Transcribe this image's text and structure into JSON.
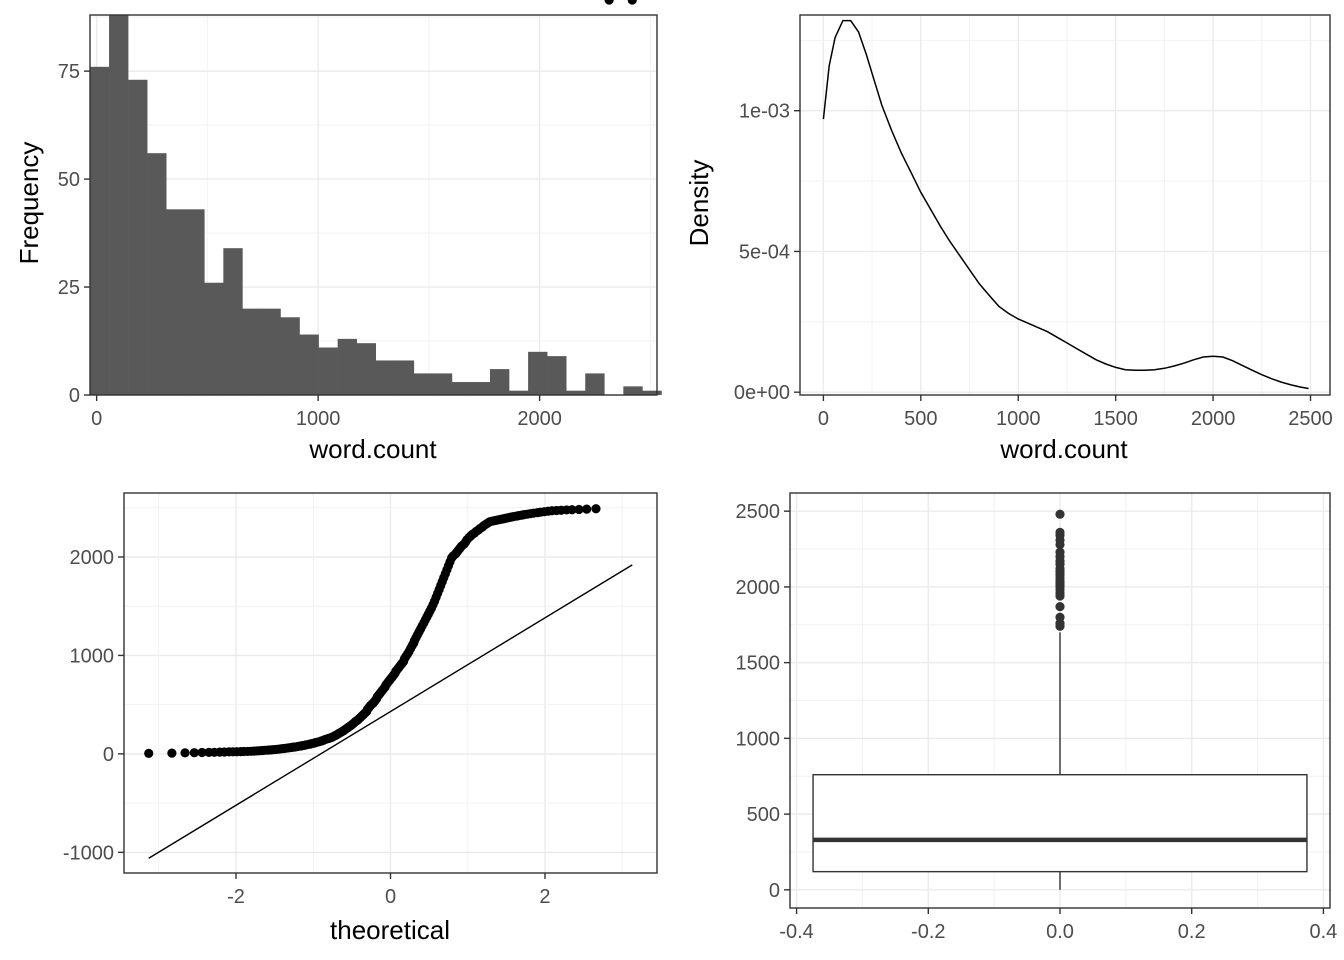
{
  "chart_data": [
    {
      "type": "bar",
      "subtype": "histogram",
      "xlabel": "word.count",
      "ylabel": "Frequency",
      "xlim": [
        -30,
        2530
      ],
      "ylim": [
        0,
        88
      ],
      "xticks": [
        0,
        1000,
        2000
      ],
      "yticks": [
        0,
        25,
        50,
        75
      ],
      "grid": true,
      "bar_color": "#595959",
      "bins": {
        "start": -30,
        "width": 86,
        "values": [
          76,
          88,
          73,
          56,
          43,
          43,
          26,
          34,
          20,
          20,
          18,
          14,
          11,
          13,
          12,
          8,
          8,
          5,
          5,
          3,
          3,
          6,
          1,
          10,
          9,
          1,
          5,
          0,
          2,
          1
        ]
      }
    },
    {
      "type": "line",
      "subtype": "density",
      "xlabel": "word.count",
      "ylabel": "Density",
      "xlim": [
        -120,
        2600
      ],
      "ylim": [
        -1e-05,
        0.00134
      ],
      "xticks": [
        0,
        500,
        1000,
        1500,
        2000,
        2500
      ],
      "yticks": [
        0,
        0.0005,
        0.001
      ],
      "ytick_labels": [
        "0e+00",
        "5e-04",
        "1e-03"
      ],
      "grid": true,
      "series": [
        {
          "x": [
            0,
            30,
            60,
            100,
            140,
            180,
            220,
            260,
            300,
            350,
            400,
            450,
            500,
            550,
            600,
            650,
            700,
            750,
            800,
            850,
            900,
            950,
            1000,
            1050,
            1100,
            1150,
            1200,
            1250,
            1300,
            1350,
            1400,
            1450,
            1500,
            1550,
            1600,
            1650,
            1700,
            1750,
            1800,
            1850,
            1900,
            1950,
            2000,
            2050,
            2100,
            2150,
            2200,
            2250,
            2300,
            2350,
            2400,
            2450,
            2490
          ],
          "y": [
            0.00097,
            0.00116,
            0.00126,
            0.00132,
            0.00132,
            0.00128,
            0.0012,
            0.00111,
            0.00102,
            0.00093,
            0.00085,
            0.00078,
            0.00071,
            0.00065,
            0.00059,
            0.000535,
            0.000485,
            0.000435,
            0.000385,
            0.000345,
            0.000305,
            0.00028,
            0.00026,
            0.000245,
            0.00023,
            0.000215,
            0.000195,
            0.000175,
            0.000155,
            0.000135,
            0.000115,
            0.0001,
            8.8e-05,
            8e-05,
            7.8e-05,
            7.8e-05,
            8e-05,
            8.5e-05,
            9.3e-05,
            0.000103,
            0.000115,
            0.000125,
            0.000128,
            0.000125,
            0.000112,
            9.5e-05,
            7.8e-05,
            6.2e-05,
            4.8e-05,
            3.6e-05,
            2.6e-05,
            1.8e-05,
            1.3e-05
          ]
        }
      ]
    },
    {
      "type": "scatter",
      "subtype": "qq-plot",
      "xlabel": "theoretical",
      "ylabel": "",
      "xlim": [
        -3.45,
        3.45
      ],
      "ylim": [
        -1210,
        2650
      ],
      "xticks": [
        -2,
        0,
        2
      ],
      "yticks": [
        -1000,
        0,
        1000,
        2000
      ],
      "grid": true,
      "reference_line": {
        "x": [
          -3.13,
          3.13
        ],
        "y": [
          -1060,
          1920
        ]
      },
      "theoretical_quantiles": [
        -3.13,
        -2.83,
        -2.66,
        -2.54,
        -2.44,
        -2.35,
        -2.28,
        -2.21,
        -2.15,
        -2.09,
        -2.04,
        -1.99,
        -1.94,
        -1.9,
        -1.85,
        -1.81,
        -1.77,
        -1.73,
        -1.7,
        -1.66,
        -1.63,
        -1.59,
        -1.56,
        -1.53,
        -1.5,
        -1.47,
        -1.44,
        -1.41,
        -1.38,
        -1.35,
        -1.32,
        -1.29,
        -1.27,
        -1.24,
        -1.21,
        -1.19,
        -1.16,
        -1.14,
        -1.11,
        -1.09,
        -1.06,
        -1.04,
        -1.02,
        -0.99,
        -0.97,
        -0.95,
        -0.92,
        -0.9,
        -0.88,
        -0.86,
        -0.84,
        -0.81,
        -0.79,
        -0.77,
        -0.75,
        -0.73,
        -0.71,
        -0.69,
        -0.67,
        -0.65,
        -0.63,
        -0.61,
        -0.59,
        -0.57,
        -0.55,
        -0.53,
        -0.51,
        -0.49,
        -0.47,
        -0.45,
        -0.43,
        -0.41,
        -0.39,
        -0.37,
        -0.35,
        -0.33,
        -0.31,
        -0.3,
        -0.28,
        -0.26,
        -0.24,
        -0.22,
        -0.2,
        -0.18,
        -0.17,
        -0.15,
        -0.13,
        -0.11,
        -0.09,
        -0.07,
        -0.06,
        -0.04,
        -0.02,
        0.0,
        0.02,
        0.04,
        0.06,
        0.07,
        0.09,
        0.11,
        0.13,
        0.15,
        0.17,
        0.18,
        0.2,
        0.22,
        0.24,
        0.26,
        0.28,
        0.3,
        0.31,
        0.33,
        0.35,
        0.37,
        0.39,
        0.41,
        0.43,
        0.45,
        0.47,
        0.49,
        0.51,
        0.53,
        0.55,
        0.57,
        0.59,
        0.61,
        0.63,
        0.65,
        0.67,
        0.69,
        0.71,
        0.73,
        0.75,
        0.77,
        0.79,
        0.81,
        0.84,
        0.86,
        0.88,
        0.9,
        0.92,
        0.95,
        0.97,
        0.99,
        1.02,
        1.04,
        1.06,
        1.09,
        1.11,
        1.14,
        1.16,
        1.19,
        1.21,
        1.24,
        1.27,
        1.29,
        1.32,
        1.35,
        1.38,
        1.41,
        1.44,
        1.47,
        1.5,
        1.53,
        1.56,
        1.59,
        1.63,
        1.66,
        1.7,
        1.73,
        1.77,
        1.81,
        1.85,
        1.9,
        1.94,
        1.99,
        2.04,
        2.09,
        2.15,
        2.21,
        2.28,
        2.35,
        2.44,
        2.54,
        2.66,
        2.83,
        3.13
      ],
      "sample_quantiles": [
        5,
        8,
        10,
        12,
        14,
        15,
        16,
        18,
        19,
        20,
        21,
        22,
        23,
        24,
        25,
        26,
        28,
        30,
        32,
        34,
        36,
        38,
        40,
        42,
        44,
        46,
        49,
        52,
        55,
        58,
        61,
        64,
        67,
        70,
        73,
        77,
        80,
        84,
        88,
        92,
        96,
        100,
        104,
        109,
        114,
        119,
        124,
        130,
        135,
        141,
        148,
        155,
        160,
        165,
        172,
        180,
        188,
        197,
        207,
        216,
        225,
        234,
        245,
        257,
        268,
        280,
        290,
        303,
        316,
        330,
        340,
        355,
        370,
        385,
        400,
        415,
        430,
        450,
        470,
        490,
        505,
        520,
        540,
        560,
        580,
        600,
        620,
        640,
        660,
        680,
        700,
        720,
        740,
        760,
        780,
        800,
        820,
        840,
        860,
        880,
        900,
        920,
        940,
        965,
        990,
        1015,
        1040,
        1070,
        1100,
        1125,
        1150,
        1180,
        1210,
        1240,
        1270,
        1300,
        1330,
        1360,
        1390,
        1420,
        1450,
        1480,
        1515,
        1550,
        1590,
        1630,
        1670,
        1710,
        1750,
        1790,
        1830,
        1870,
        1910,
        1950,
        1990,
        2010,
        2030,
        2050,
        2070,
        2090,
        2110,
        2130,
        2150,
        2175,
        2200,
        2215,
        2230,
        2245,
        2260,
        2275,
        2290,
        2305,
        2320,
        2335,
        2350,
        2360,
        2365,
        2370,
        2375,
        2380,
        2385,
        2390,
        2395,
        2400,
        2405,
        2410,
        2415,
        2420,
        2425,
        2430,
        2435,
        2440,
        2445,
        2450,
        2455,
        2460,
        2465,
        2470,
        2472,
        2475,
        2478,
        2480,
        2483,
        2486,
        2490
      ]
    },
    {
      "type": "box",
      "xlabel": "",
      "ylabel": "",
      "xlim": [
        -0.41,
        0.41
      ],
      "ylim": [
        -120,
        2620
      ],
      "xticks": [
        -0.4,
        -0.2,
        0.0,
        0.2,
        0.4
      ],
      "xtick_labels": [
        "-0.4",
        "-0.2",
        "0.0",
        "0.2",
        "0.4"
      ],
      "yticks": [
        0,
        500,
        1000,
        1500,
        2000,
        2500
      ],
      "grid": true,
      "box": {
        "x_center": 0,
        "half_width": 0.375,
        "lower_whisker": 0,
        "q1": 120,
        "median": 330,
        "q3": 760,
        "upper_whisker": 1700
      },
      "outliers": [
        1740,
        1760,
        1800,
        1870,
        1940,
        1960,
        1980,
        2000,
        2010,
        2020,
        2030,
        2040,
        2060,
        2080,
        2100,
        2120,
        2150,
        2170,
        2200,
        2230,
        2280,
        2310,
        2340,
        2360,
        2480
      ]
    }
  ]
}
